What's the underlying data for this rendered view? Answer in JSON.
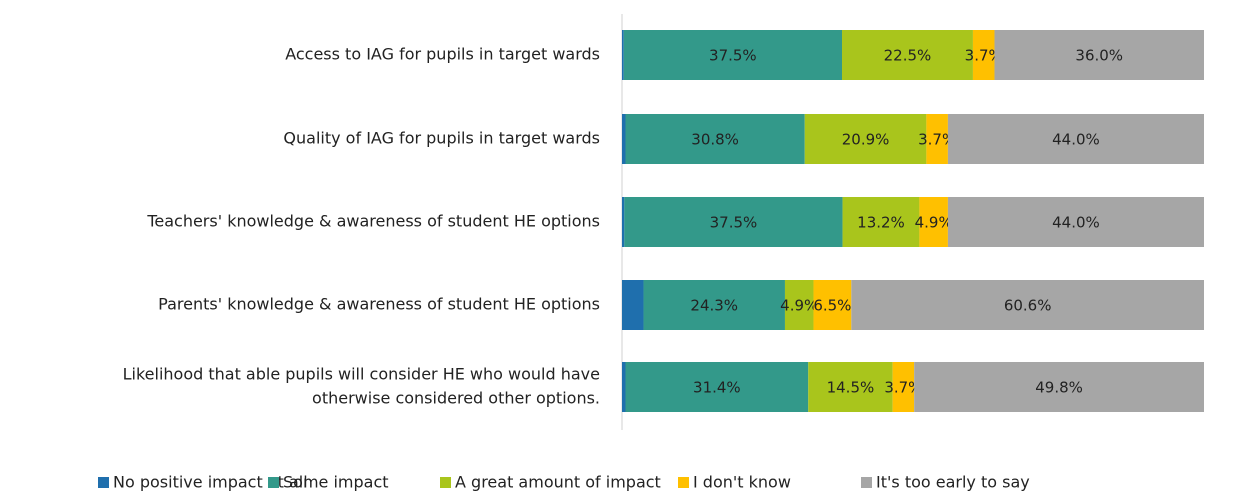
{
  "chart_data": {
    "type": "stacked-barh",
    "categories": [
      [
        "Access to IAG for pupils in target wards"
      ],
      [
        "Quality of IAG for pupils in target wards"
      ],
      [
        "Teachers' knowledge & awareness of student HE options"
      ],
      [
        "Parents' knowledge & awareness of student HE  options"
      ],
      [
        "Likelihood that able pupils will consider HE who would have",
        "otherwise considered other options."
      ]
    ],
    "xlim": [
      0,
      100
    ],
    "legend": "bottom",
    "series": [
      {
        "name": "No positive impact at all",
        "color": "#1f6fad",
        "values": [
          0.3,
          0.6,
          0.4,
          3.7,
          0.6
        ]
      },
      {
        "name": "Some impact",
        "color": "#33998a",
        "values": [
          37.5,
          30.8,
          37.5,
          24.3,
          31.4
        ],
        "value_labels": [
          "37.5%",
          "30.8%",
          "37.5%",
          "24.3%",
          "31.4%"
        ]
      },
      {
        "name": "A great amount of impact",
        "color": "#a9c51c",
        "values": [
          22.5,
          20.9,
          13.2,
          4.9,
          14.5
        ],
        "value_labels": [
          "22.5%",
          "20.9%",
          "13.2%",
          "4.9%",
          "14.5%"
        ]
      },
      {
        "name": "I don't know",
        "color": "#ffc000",
        "values": [
          3.7,
          3.7,
          4.9,
          6.5,
          3.7
        ],
        "value_labels": [
          "3.7%",
          "3.7%",
          "4.9%",
          "6.5%",
          "3.7%"
        ]
      },
      {
        "name": "It's too early to say",
        "color": "#a6a6a6",
        "values": [
          36.0,
          44.0,
          44.0,
          60.6,
          49.8
        ],
        "value_labels": [
          "36.0%",
          "44.0%",
          "44.0%",
          "60.6%",
          "49.8%"
        ]
      }
    ]
  }
}
